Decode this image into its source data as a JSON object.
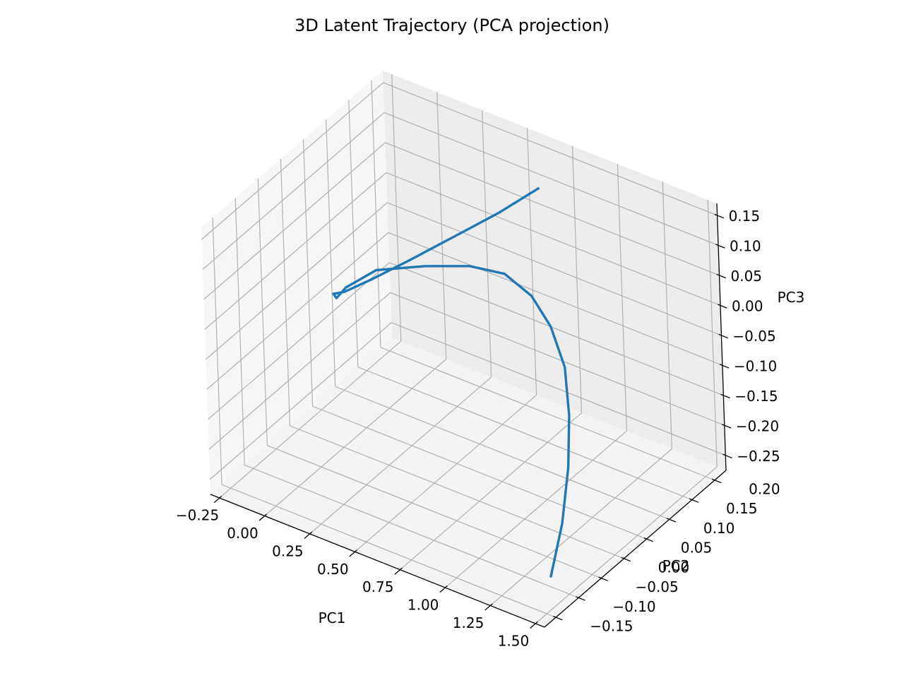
{
  "chart_data": {
    "type": "line",
    "title": "3D Latent Trajectory (PCA projection)",
    "xlabel": "PC1",
    "ylabel": "PC2",
    "zlabel": "PC3",
    "x_ticks": [
      "−0.25",
      "0.00",
      "0.25",
      "0.50",
      "0.75",
      "1.00",
      "1.25",
      "1.50"
    ],
    "y_ticks": [
      "−0.15",
      "−0.10",
      "−0.05",
      "0.00",
      "0.05",
      "0.10",
      "0.15",
      "0.20"
    ],
    "z_ticks": [
      "−0.25",
      "−0.20",
      "−0.15",
      "−0.10",
      "−0.05",
      "0.00",
      "0.05",
      "0.10",
      "0.15"
    ],
    "x_values": [
      -0.25,
      0.0,
      0.25,
      0.5,
      0.75,
      1.0,
      1.25,
      1.5
    ],
    "y_values": [
      -0.15,
      -0.1,
      -0.05,
      0.0,
      0.05,
      0.1,
      0.15,
      0.2
    ],
    "z_values": [
      -0.25,
      -0.2,
      -0.15,
      -0.1,
      -0.05,
      0.0,
      0.05,
      0.1,
      0.15
    ],
    "series": [
      {
        "color": "#1f77b4",
        "x": [
          1.45,
          1.42,
          1.36,
          1.27,
          1.15,
          1.0,
          0.82,
          0.62,
          0.4,
          0.15,
          -0.1,
          -0.22,
          -0.25,
          -0.24,
          -0.18,
          -0.05,
          0.12,
          0.32,
          0.52,
          0.7
        ],
        "y": [
          -0.12,
          -0.08,
          -0.04,
          0.0,
          0.04,
          0.07,
          0.1,
          0.12,
          0.13,
          0.13,
          0.12,
          0.1,
          0.09,
          0.08,
          0.08,
          0.09,
          0.11,
          0.13,
          0.15,
          0.17
        ],
        "z": [
          -0.24,
          -0.18,
          -0.12,
          -0.07,
          -0.03,
          0.0,
          0.01,
          0.01,
          -0.01,
          -0.04,
          -0.07,
          -0.1,
          -0.115,
          -0.1,
          -0.09,
          -0.06,
          -0.02,
          0.03,
          0.08,
          0.13
        ]
      }
    ],
    "grid": true,
    "pane_color": "#f2f2f2",
    "grid_color": "#b0b0b0"
  }
}
